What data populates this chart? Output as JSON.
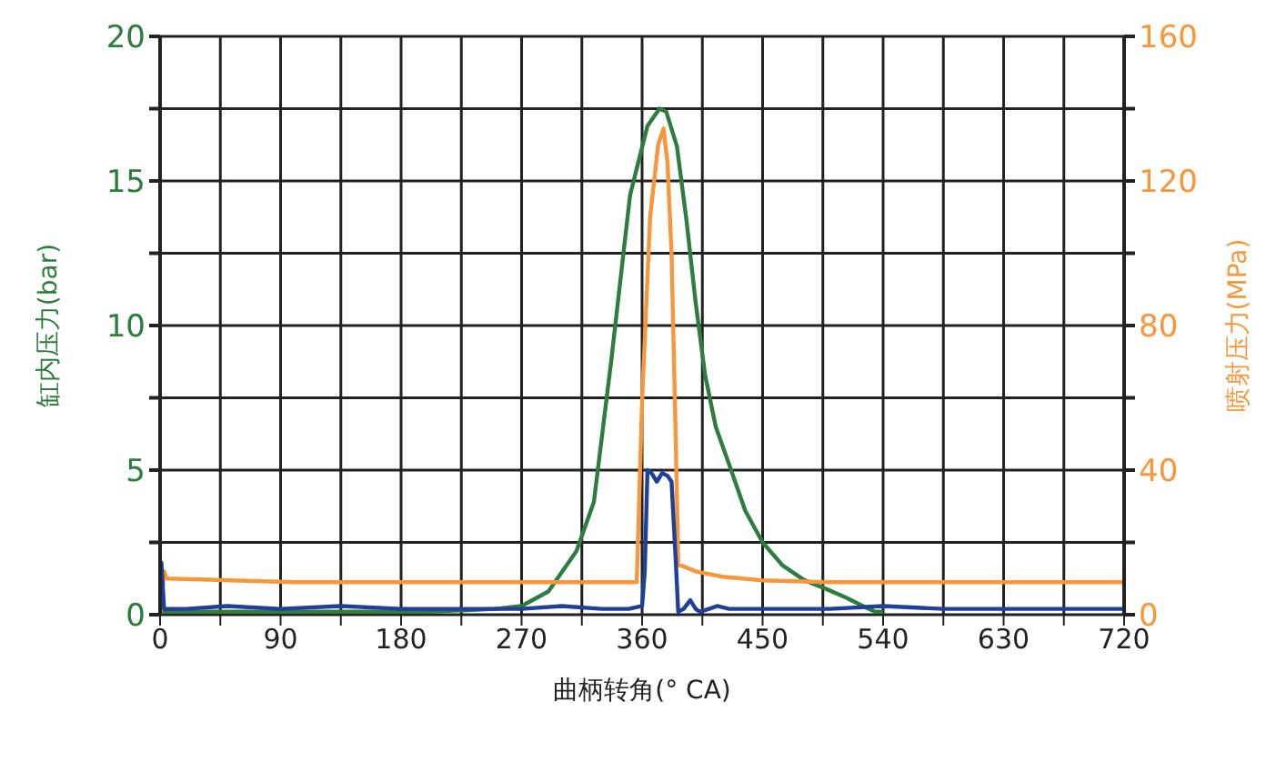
{
  "chart_data": {
    "type": "line",
    "xlabel": "曲柄转角(° CA)",
    "ylabel": "缸内压力(bar)",
    "y2label": "喷射压力(MPa)",
    "xlim": [
      0,
      720
    ],
    "xticks": [
      0,
      {
        "value": 45,
        "label": null
      },
      90,
      {
        "value": 135,
        "label": null
      },
      180,
      {
        "value": 225,
        "label": null
      },
      270,
      {
        "value": 315,
        "label": null
      },
      360,
      {
        "value": 405,
        "label": null
      },
      450,
      {
        "value": 495,
        "label": null
      },
      540,
      {
        "value": 585,
        "label": null
      },
      630,
      {
        "value": 675,
        "label": null
      },
      720
    ],
    "ylim": [
      0,
      20
    ],
    "yticks": [
      0,
      {
        "value": 2.5,
        "label": null
      },
      5,
      {
        "value": 7.5,
        "label": null
      },
      10,
      {
        "value": 12.5,
        "label": null
      },
      15,
      {
        "value": 17.5,
        "label": null
      },
      20
    ],
    "y2lim": [
      0,
      160
    ],
    "y2ticks": [
      0,
      {
        "value": 20,
        "label": null
      },
      40,
      {
        "value": 60,
        "label": null
      },
      80,
      {
        "value": 100,
        "label": null
      },
      120,
      {
        "value": 140,
        "label": null
      },
      160
    ],
    "grid": true,
    "marker": "none",
    "line_style": "solid",
    "series": [
      {
        "color": "#2e7d3e",
        "x": [
          0,
          100,
          200,
          250,
          270,
          290,
          311,
          324,
          337,
          351,
          364,
          373,
          378,
          386,
          393,
          400,
          407,
          415,
          425,
          437,
          450,
          465,
          481,
          497,
          512,
          525,
          534,
          540
        ],
        "values": [
          0.1,
          0.1,
          0.1,
          0.2,
          0.3,
          0.8,
          2.2,
          3.9,
          8.8,
          14.5,
          16.9,
          17.5,
          17.4,
          16.2,
          13.7,
          10.8,
          8.3,
          6.5,
          5.2,
          3.6,
          2.5,
          1.7,
          1.2,
          0.9,
          0.6,
          0.3,
          0.1,
          0.1
        ]
      },
      {
        "color": "#f7963a",
        "axis": "y2",
        "x": [
          0,
          3,
          5,
          100,
          200,
          300,
          356,
          360,
          366,
          372,
          376,
          379,
          382,
          385,
          387,
          390,
          400,
          420,
          450,
          500,
          600,
          720
        ],
        "values": [
          0,
          12,
          10,
          9,
          9,
          9,
          9,
          59,
          110,
          130,
          134.5,
          125,
          100,
          51,
          13.7,
          13.5,
          12,
          10.5,
          9.5,
          9,
          9,
          9
        ]
      },
      {
        "color": "#1f3f99",
        "x": [
          0,
          1,
          3,
          20,
          50,
          90,
          135,
          180,
          225,
          270,
          300,
          330,
          350,
          360,
          362,
          364,
          367,
          371,
          375,
          379,
          382,
          385,
          387,
          391,
          396,
          400,
          403,
          410,
          416,
          425,
          450,
          500,
          540,
          585,
          630,
          675,
          720
        ],
        "values": [
          0.2,
          1.8,
          0.2,
          0.2,
          0.3,
          0.2,
          0.3,
          0.2,
          0.2,
          0.2,
          0.3,
          0.2,
          0.2,
          0.3,
          1.5,
          5,
          4.9,
          4.6,
          4.9,
          4.8,
          4.6,
          2,
          0.1,
          0.2,
          0.5,
          0.2,
          0.1,
          0.2,
          0.3,
          0.2,
          0.2,
          0.2,
          0.3,
          0.2,
          0.2,
          0.2,
          0.2
        ]
      }
    ]
  }
}
